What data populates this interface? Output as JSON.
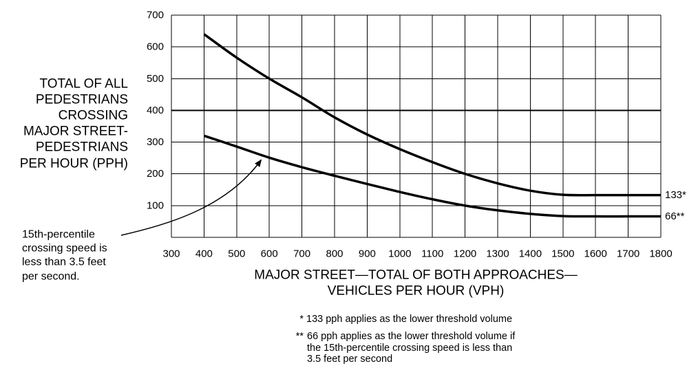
{
  "chart_data": {
    "type": "line",
    "ylabel": [
      "TOTAL OF ALL",
      "PEDESTRIANS",
      "CROSSING",
      "MAJOR STREET-",
      "PEDESTRIANS",
      "PER HOUR (PPH)"
    ],
    "xlabel": [
      "MAJOR STREET—TOTAL OF BOTH APPROACHES—",
      "VEHICLES PER HOUR (VPH)"
    ],
    "xlim": [
      300,
      1800
    ],
    "ylim": [
      0,
      700
    ],
    "x_ticks": [
      300,
      400,
      500,
      600,
      700,
      800,
      900,
      1000,
      1100,
      1200,
      1300,
      1400,
      1500,
      1600,
      1700,
      1800
    ],
    "y_ticks": [
      100,
      200,
      300,
      400,
      500,
      600,
      700
    ],
    "grid": true,
    "reference_line_y": 400,
    "x": [
      400,
      500,
      600,
      700,
      800,
      900,
      1000,
      1100,
      1200,
      1300,
      1400,
      1500,
      1600,
      1700,
      1800
    ],
    "series": [
      {
        "name": "133*",
        "values": [
          640,
          566,
          500,
          441,
          378,
          324,
          278,
          237,
          200,
          170,
          147,
          134,
          133,
          133,
          133
        ]
      },
      {
        "name": "66**",
        "values": [
          320,
          286,
          251,
          221,
          194,
          168,
          143,
          120,
          100,
          85,
          74,
          67,
          66,
          66,
          66
        ]
      }
    ],
    "annotation": [
      "15th-percentile",
      "crossing speed is",
      "less than 3.5 feet",
      "per second."
    ]
  },
  "footnotes": [
    {
      "marker": "*",
      "lines": [
        "133 pph applies as the lower threshold volume"
      ]
    },
    {
      "marker": "**",
      "lines": [
        "66 pph applies as the lower threshold volume if",
        "the 15th-percentile crossing speed is less than",
        "3.5 feet per second"
      ]
    }
  ],
  "colors": {
    "background": "#ffffff",
    "ink": "#000000"
  }
}
